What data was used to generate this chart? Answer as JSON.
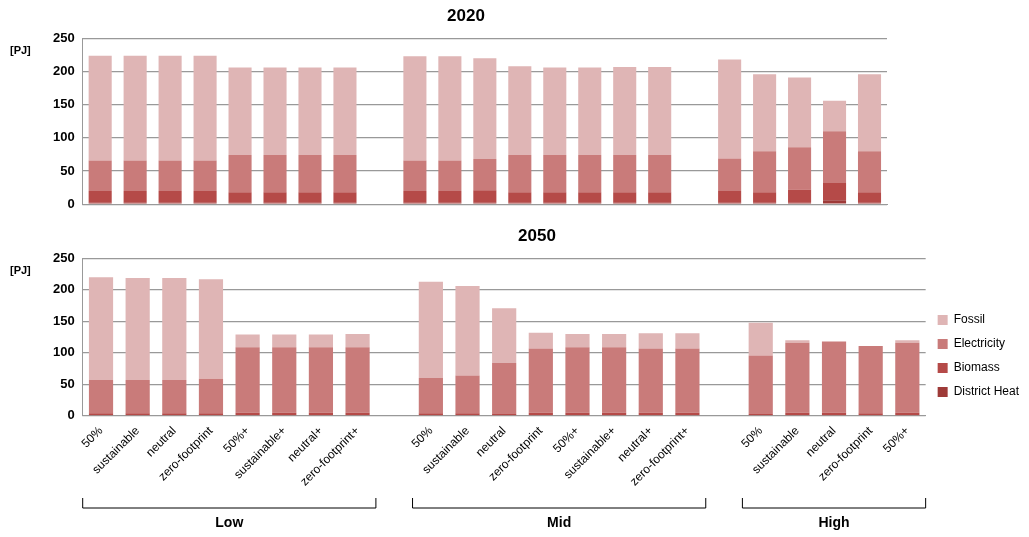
{
  "chart_data": [
    {
      "type": "bar",
      "title": "2020",
      "ylabel": "[PJ]",
      "stacked": true,
      "grid": "y",
      "legend": false,
      "tick_labels": "y",
      "ylim": [
        0,
        250
      ],
      "yticks": [
        0,
        50,
        100,
        150,
        200,
        250
      ],
      "categories": [
        null,
        null,
        null,
        null,
        null,
        null,
        null,
        null,
        null,
        null,
        null,
        null,
        null,
        null,
        null,
        null,
        null,
        null,
        null,
        null,
        null,
        null,
        null
      ],
      "series": [
        {
          "color": "#9e3a38",
          "values": [
            2,
            2,
            2,
            2,
            2,
            2,
            2,
            2,
            null,
            2,
            2,
            2,
            2,
            2,
            2,
            2,
            2,
            null,
            2,
            2,
            2,
            6,
            2
          ]
        },
        {
          "color": "#b54a48",
          "values": [
            18,
            18,
            18,
            18,
            16,
            16,
            16,
            16,
            null,
            18,
            18,
            19,
            16,
            16,
            16,
            16,
            16,
            null,
            18,
            16,
            20,
            26,
            16
          ]
        },
        {
          "color": "#c97b7a",
          "values": [
            46,
            46,
            46,
            46,
            56,
            56,
            56,
            56,
            null,
            46,
            46,
            47,
            56,
            56,
            56,
            56,
            56,
            null,
            49,
            62,
            64,
            78,
            62
          ]
        },
        {
          "color": "#dfb5b5",
          "values": [
            158,
            158,
            158,
            158,
            132,
            132,
            132,
            132,
            null,
            157,
            157,
            152,
            134,
            132,
            132,
            133,
            133,
            null,
            149,
            116,
            105,
            46,
            116
          ]
        }
      ]
    },
    {
      "type": "bar",
      "title": "2050",
      "ylabel": "[PJ]",
      "stacked": true,
      "grid": "y",
      "legend": "right",
      "ylim": [
        0,
        250
      ],
      "yticks": [
        0,
        50,
        100,
        150,
        200,
        250
      ],
      "categories": [
        "50%",
        "sustainable",
        "neutral",
        "zero-footprint",
        "50%+",
        "sustainable+",
        "neutral+",
        "zero-footprint+",
        null,
        "50%",
        "sustainable",
        "neutral",
        "zero-footprint",
        "50%+",
        "sustainable+",
        "neutral+",
        "zero-footprint+",
        null,
        "50%",
        "sustainable",
        "neutral",
        "zero-footprint",
        "50%+"
      ],
      "annotations": [
        "Low",
        "Mid",
        "High"
      ],
      "series": [
        {
          "name": "District Heat",
          "color": "#9e3a38",
          "values": [
            1,
            1,
            1,
            1,
            1,
            1,
            1,
            1,
            null,
            1,
            1,
            1,
            1,
            1,
            1,
            1,
            1,
            null,
            1,
            1,
            1,
            1,
            1
          ]
        },
        {
          "name": "Biomass",
          "color": "#b54a48",
          "values": [
            3,
            3,
            3,
            3,
            4,
            4,
            4,
            4,
            null,
            3,
            3,
            2,
            4,
            4,
            4,
            4,
            4,
            null,
            2,
            4,
            4,
            3,
            4
          ]
        },
        {
          "name": "Electricity",
          "color": "#c97b7a",
          "values": [
            53,
            53,
            53,
            55,
            104,
            104,
            104,
            104,
            null,
            56,
            60,
            81,
            102,
            104,
            104,
            102,
            102,
            null,
            93,
            111,
            113,
            107,
            111
          ]
        },
        {
          "name": "Fossil",
          "color": "#dfb5b5",
          "values": [
            163,
            162,
            162,
            158,
            20,
            20,
            20,
            21,
            null,
            153,
            142,
            87,
            25,
            21,
            21,
            24,
            24,
            null,
            52,
            4,
            0,
            0,
            4
          ]
        }
      ]
    }
  ]
}
